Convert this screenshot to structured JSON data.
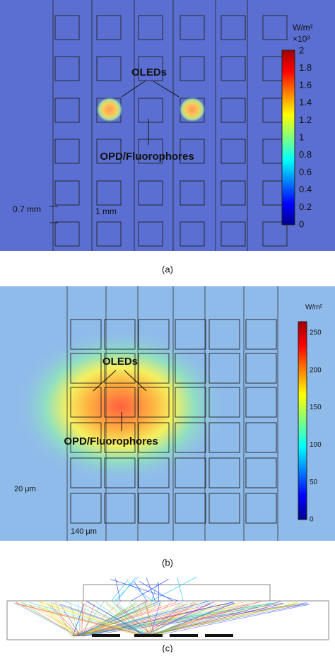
{
  "panels": [
    {
      "caption": "(a)",
      "unit": "W/m²",
      "multiplier": "×10³",
      "colorbar_ticks": [
        2,
        1.8,
        1.6,
        1.4,
        1.2,
        1,
        0.8,
        0.6,
        0.4,
        0.2,
        0
      ],
      "annotations": {
        "oleds": "OLEDs",
        "opd": "OPD/Fluorophores"
      },
      "scale_labels": {
        "vertical": "0.7 mm",
        "horizontal": "1 mm"
      }
    },
    {
      "caption": "(b)",
      "unit": "W/m²",
      "colorbar_ticks": [
        250,
        200,
        150,
        100,
        50,
        0
      ],
      "annotations": {
        "oleds": "OLEDs",
        "opd": "OPD/Fluorophores"
      },
      "scale_labels": {
        "vertical": "20 μm",
        "horizontal": "140 μm"
      }
    },
    {
      "caption": "(c)"
    }
  ]
}
